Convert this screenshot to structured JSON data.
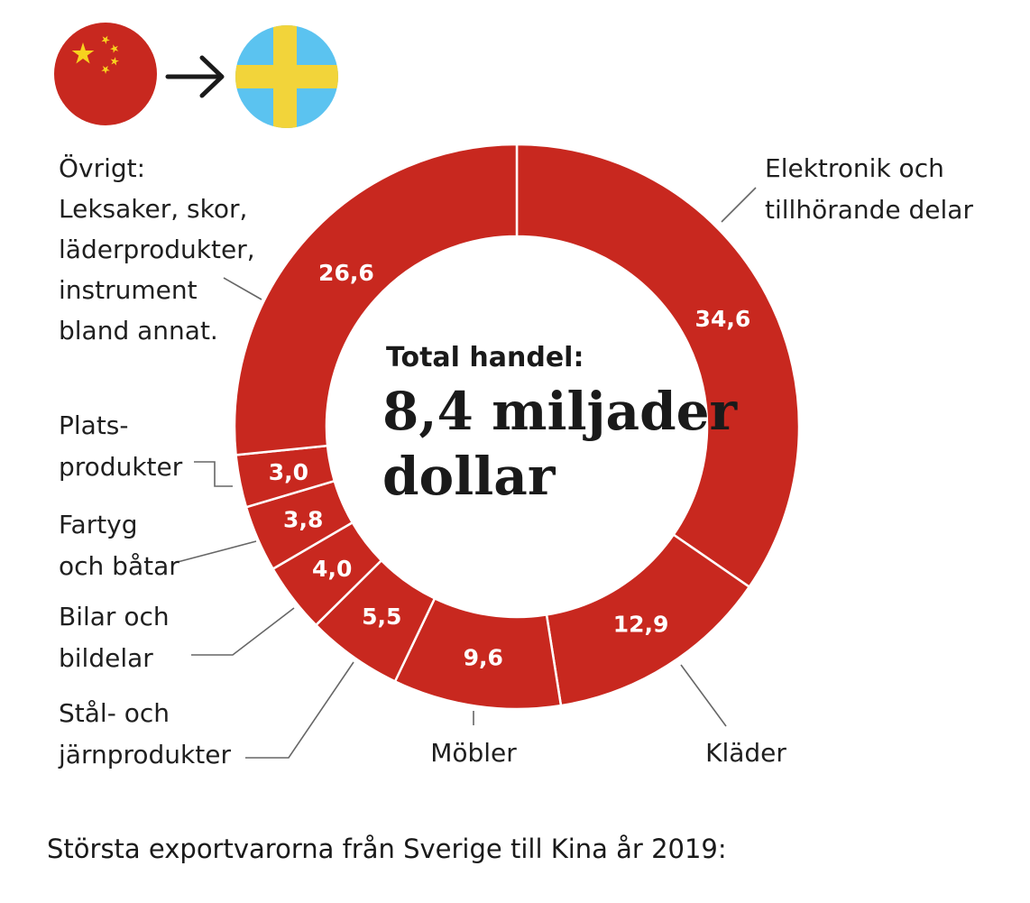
{
  "header": {
    "from_flag_icon": "china-flag-icon",
    "arrow_icon": "arrow-right-icon",
    "to_flag_icon": "sweden-flag-icon"
  },
  "colors": {
    "slice": "#c8281f",
    "slice_border": "#ffffff",
    "china_red": "#c8281f",
    "china_star": "#f7d21e",
    "sweden_blue": "#5bc3f0",
    "sweden_yellow": "#f2d43a"
  },
  "center": {
    "label": "Total handel:",
    "value_line1": "8,4 miljader",
    "value_line2": "dollar"
  },
  "chart_data": {
    "type": "pie",
    "donut": true,
    "total": "8,4 miljader dollar",
    "slices": [
      {
        "value": 34.6,
        "value_label": "34,6",
        "label_lines": [
          "Elektronik och",
          "tillhörande delar"
        ]
      },
      {
        "value": 12.9,
        "value_label": "12,9",
        "label_lines": [
          "Kläder"
        ]
      },
      {
        "value": 9.6,
        "value_label": "9,6",
        "label_lines": [
          "Möbler"
        ]
      },
      {
        "value": 5.5,
        "value_label": "5,5",
        "label_lines": [
          "Stål- och",
          "järnprodukter"
        ]
      },
      {
        "value": 4.0,
        "value_label": "4,0",
        "label_lines": [
          "Bilar och",
          "bildelar"
        ]
      },
      {
        "value": 3.8,
        "value_label": "3,8",
        "label_lines": [
          "Fartyg",
          "och båtar"
        ]
      },
      {
        "value": 3.0,
        "value_label": "3,0",
        "label_lines": [
          "Plats-",
          "produkter"
        ]
      },
      {
        "value": 26.6,
        "value_label": "26,6",
        "label_lines": [
          "Övrigt:",
          "Leksaker, skor,",
          "läderprodukter,",
          "instrument",
          "bland annat."
        ]
      }
    ]
  },
  "caption": "Största exportvarorna från Sverige till Kina år 2019:"
}
